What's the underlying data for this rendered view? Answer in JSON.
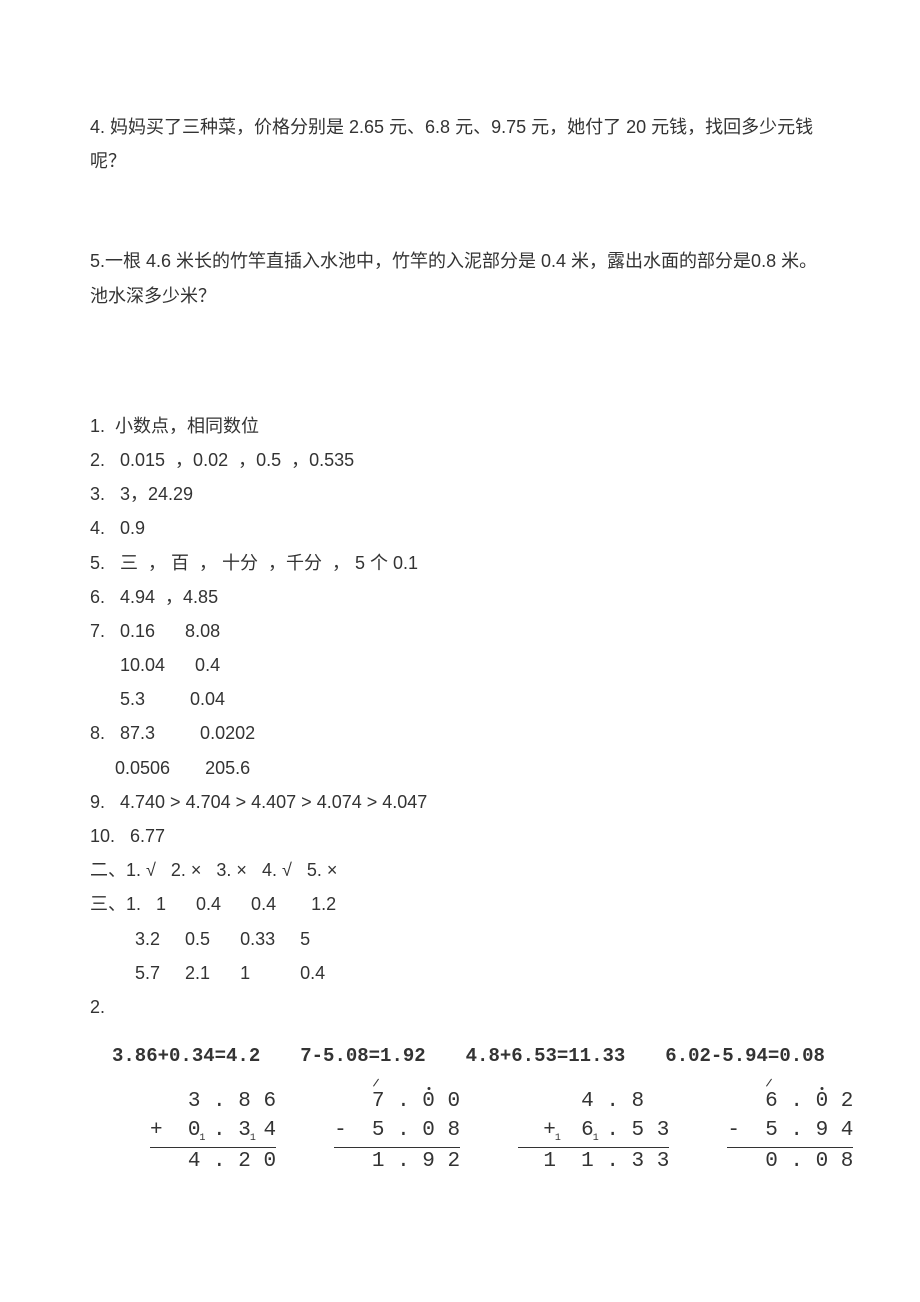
{
  "problems": {
    "q4": "4.  妈妈买了三种菜，价格分别是  2.65 元、6.8 元、9.75 元，她付了  20 元钱，找回多少元钱呢？",
    "q5": "5.一根 4.6 米长的竹竿直插入水池中，竹竿的入泥部分是   0.4 米，露出水面的部分是0.8 米。池水深多少米？"
  },
  "answers": {
    "a1": "1.  小数点，相同数位",
    "a2": "2.   0.015  ，0.02  ，0.5  ，0.535",
    "a3": "3.   3，24.29",
    "a4": "4.   0.9",
    "a5": "5.   三  ， 百  ， 十分  ，千分  ， 5 个 0.1",
    "a6": "6.   4.94  ，4.85",
    "a7a": "7.   0.16      8.08",
    "a7b": "      10.04      0.4",
    "a7c": "      5.3         0.04",
    "a8a": "8.   87.3         0.0202",
    "a8b": "     0.0506       205.6",
    "a9": "9.   4.740 > 4.704 > 4.407 > 4.074 > 4.047",
    "a10": "10.   6.77",
    "s2": "二、1. √   2. ×   3. ×   4. √   5. ×",
    "s3a": "三、1.   1      0.4      0.4       1.2",
    "s3b": "         3.2     0.5      0.33     5",
    "s3c": "         5.7     2.1      1          0.4",
    "s3_2": "2."
  },
  "equations": {
    "e1": "3.86+0.34=4.2",
    "e2": "7-5.08=1.92",
    "e3": "4.8+6.53=11.33",
    "e4": "6.02-5.94=0.08"
  },
  "colcalc": {
    "c1": {
      "r1": "3 . 8 6",
      "r2": "+  0 . 3 4",
      "r3": "4 . 2 0"
    },
    "c2": {
      "r1": "7 . 0 0",
      "r2": "-  5 . 0 8",
      "r3": "1 . 9 2"
    },
    "c3": {
      "r1": "4 . 8  ",
      "r2": "+  6 . 5 3",
      "r3": "1  1 . 3 3"
    },
    "c4": {
      "r1": "6 . 0 2",
      "r2": "-  5 . 9 4",
      "r3": "0 . 0 8"
    }
  }
}
